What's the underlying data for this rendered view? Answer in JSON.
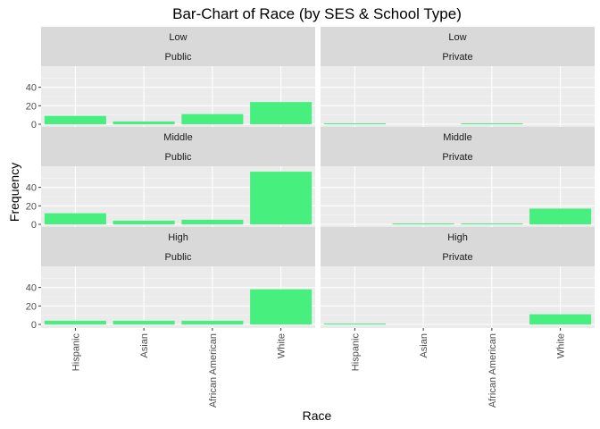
{
  "chart_data": {
    "type": "bar",
    "title": "Bar-Chart of Race (by SES & School Type)",
    "xlabel": "Race",
    "ylabel": "Frequency",
    "categories": [
      "Hispanic",
      "Asian",
      "African American",
      "White"
    ],
    "y_ticks": [
      0,
      20,
      40
    ],
    "ylim": [
      0,
      59
    ],
    "bar_color": "#47ef7e",
    "grid": true,
    "facets": [
      {
        "row_label": "Low",
        "col_label": "Public",
        "values": [
          9,
          3,
          11,
          24
        ]
      },
      {
        "row_label": "Low",
        "col_label": "Private",
        "values": [
          1,
          0,
          1,
          0
        ]
      },
      {
        "row_label": "Middle",
        "col_label": "Public",
        "values": [
          12,
          4,
          5,
          57
        ]
      },
      {
        "row_label": "Middle",
        "col_label": "Private",
        "values": [
          0,
          1,
          1,
          17
        ]
      },
      {
        "row_label": "High",
        "col_label": "Public",
        "values": [
          4,
          4,
          4,
          38
        ]
      },
      {
        "row_label": "High",
        "col_label": "Private",
        "values": [
          1,
          0,
          0,
          11
        ]
      }
    ]
  }
}
